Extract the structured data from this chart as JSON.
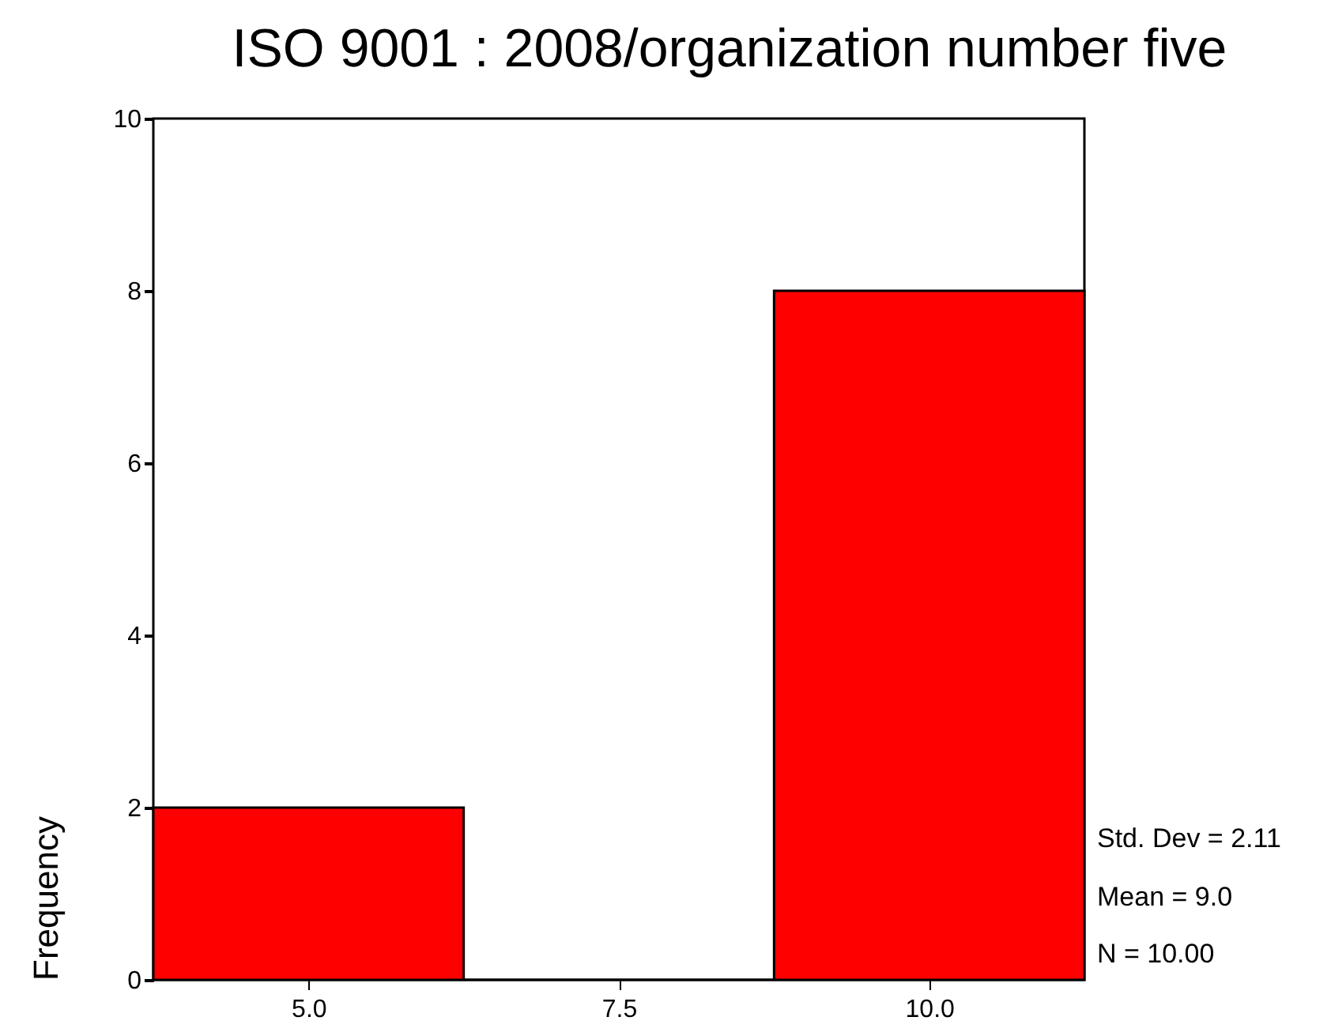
{
  "chart_data": {
    "type": "histogram",
    "title": "ISO 9001 : 2008/organization number five",
    "ylabel": "Frequency",
    "bins": [
      3.75,
      6.25,
      8.75,
      11.25
    ],
    "values": [
      2,
      0,
      8
    ],
    "color": "#ff0000",
    "xlim": [
      3.75,
      11.25
    ],
    "xticks": [
      {
        "value": 5,
        "label": "5.0"
      },
      {
        "value": 7.5,
        "label": "7.5"
      },
      {
        "value": 10,
        "label": "10.0"
      }
    ],
    "ylim": [
      0,
      10
    ],
    "yticks": [
      0,
      2,
      4,
      6,
      8,
      10
    ],
    "grid": false,
    "annotations": [
      "Std. Dev = 2.11",
      "Mean = 9.0",
      "N = 10.00"
    ]
  }
}
